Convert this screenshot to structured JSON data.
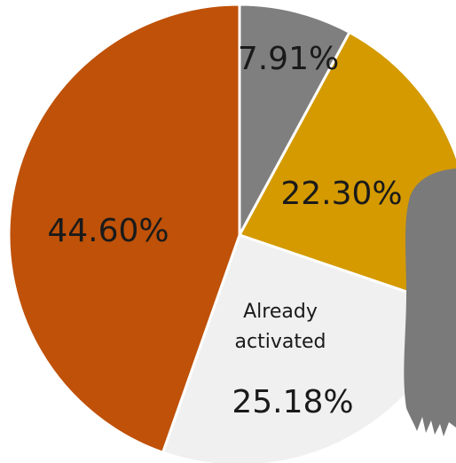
{
  "chart_data": {
    "type": "pie",
    "categories": [
      null,
      null,
      "Already activated",
      null
    ],
    "values": [
      7.91,
      22.3,
      25.18,
      44.6
    ],
    "value_labels": [
      "7.91%",
      "22.30%",
      "25.18%",
      "44.60%"
    ],
    "colors": [
      "#7f7f7f",
      "#d49a00",
      "#f0f0f0",
      "#bf5108"
    ]
  }
}
